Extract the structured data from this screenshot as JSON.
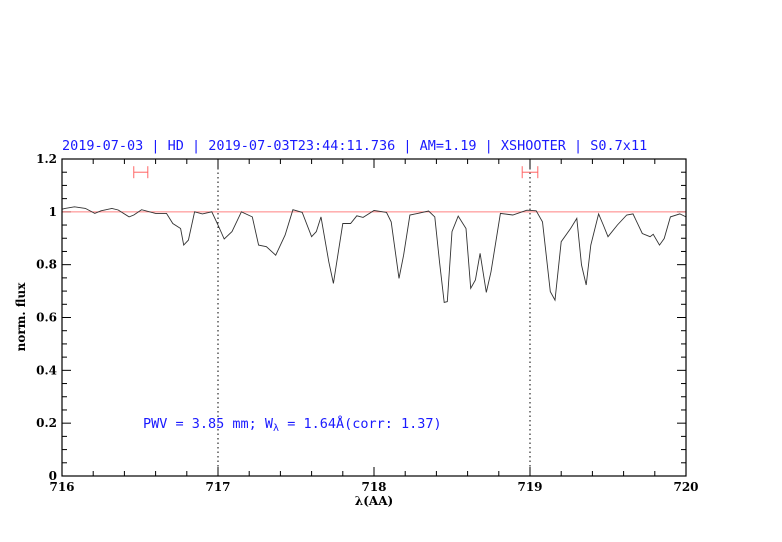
{
  "chart_data": {
    "type": "line",
    "title": "2019-07-03 | HD | 2019-07-03T23:44:11.736 | AM=1.19 | XSHOOTER | S0.7x11",
    "xlabel": "λ(AA)",
    "ylabel": "norm. flux",
    "xlim": [
      716,
      720
    ],
    "ylim": [
      0,
      1.2
    ],
    "x_ticks": [
      "716",
      "717",
      "718",
      "719",
      "720"
    ],
    "y_ticks": [
      "0",
      "0.2",
      "0.4",
      "0.6",
      "0.8",
      "1",
      "1.2"
    ],
    "x_minor_step": 0.2,
    "y_minor_step": 0.05,
    "grid": false,
    "continuum_level": 1.0,
    "continuum_color": "#ff8080",
    "vertical_markers": [
      717,
      719
    ],
    "range_markers": [
      {
        "from": 716.46,
        "to": 716.55,
        "y": 1.15
      },
      {
        "from": 718.95,
        "to": 719.05,
        "y": 1.15
      }
    ],
    "range_marker_color": "#ff6666",
    "annotation": {
      "prefix": "PWV = 3.85 mm; W",
      "subscript": "λ",
      "suffix": " = 1.64Å(corr: 1.37)"
    },
    "annotation_color": "#1a1aff",
    "series": [
      {
        "color": "#333333",
        "points": [
          [
            716.0,
            1.01
          ],
          [
            716.02,
            1.013
          ],
          [
            716.08,
            1.019
          ],
          [
            716.15,
            1.013
          ],
          [
            716.21,
            0.994
          ],
          [
            716.25,
            1.004
          ],
          [
            716.32,
            1.013
          ],
          [
            716.36,
            1.007
          ],
          [
            716.43,
            0.981
          ],
          [
            716.46,
            0.988
          ],
          [
            716.51,
            1.008
          ],
          [
            716.6,
            0.994
          ],
          [
            716.67,
            0.994
          ],
          [
            716.71,
            0.956
          ],
          [
            716.76,
            0.937
          ],
          [
            716.78,
            0.874
          ],
          [
            716.81,
            0.893
          ],
          [
            716.85,
            1.0
          ],
          [
            716.9,
            0.992
          ],
          [
            716.96,
            1.0
          ],
          [
            717.0,
            0.95
          ],
          [
            717.04,
            0.897
          ],
          [
            717.09,
            0.925
          ],
          [
            717.15,
            1.0
          ],
          [
            717.22,
            0.981
          ],
          [
            717.26,
            0.874
          ],
          [
            717.31,
            0.868
          ],
          [
            717.37,
            0.836
          ],
          [
            717.43,
            0.912
          ],
          [
            717.48,
            1.008
          ],
          [
            717.54,
            0.998
          ],
          [
            717.6,
            0.906
          ],
          [
            717.63,
            0.925
          ],
          [
            717.66,
            0.981
          ],
          [
            717.71,
            0.811
          ],
          [
            717.74,
            0.729
          ],
          [
            717.8,
            0.956
          ],
          [
            717.85,
            0.956
          ],
          [
            717.89,
            0.985
          ],
          [
            717.93,
            0.979
          ],
          [
            718.0,
            1.005
          ],
          [
            718.08,
            0.998
          ],
          [
            718.11,
            0.962
          ],
          [
            718.16,
            0.748
          ],
          [
            718.19,
            0.836
          ],
          [
            718.23,
            0.988
          ],
          [
            718.28,
            0.994
          ],
          [
            718.35,
            1.003
          ],
          [
            718.39,
            0.981
          ],
          [
            718.42,
            0.811
          ],
          [
            718.45,
            0.657
          ],
          [
            718.47,
            0.66
          ],
          [
            718.5,
            0.925
          ],
          [
            718.54,
            0.984
          ],
          [
            718.59,
            0.937
          ],
          [
            718.62,
            0.71
          ],
          [
            718.65,
            0.742
          ],
          [
            718.68,
            0.843
          ],
          [
            718.72,
            0.695
          ],
          [
            718.75,
            0.773
          ],
          [
            718.81,
            0.994
          ],
          [
            718.89,
            0.988
          ],
          [
            718.98,
            1.006
          ],
          [
            719.04,
            1.004
          ],
          [
            719.08,
            0.962
          ],
          [
            719.13,
            0.698
          ],
          [
            719.16,
            0.666
          ],
          [
            719.2,
            0.887
          ],
          [
            719.26,
            0.937
          ],
          [
            719.3,
            0.975
          ],
          [
            719.33,
            0.799
          ],
          [
            719.36,
            0.723
          ],
          [
            719.39,
            0.874
          ],
          [
            719.44,
            0.992
          ],
          [
            719.47,
            0.95
          ],
          [
            719.5,
            0.906
          ],
          [
            719.56,
            0.95
          ],
          [
            719.62,
            0.988
          ],
          [
            719.66,
            0.992
          ],
          [
            719.72,
            0.918
          ],
          [
            719.77,
            0.906
          ],
          [
            719.79,
            0.915
          ],
          [
            719.83,
            0.874
          ],
          [
            719.86,
            0.899
          ],
          [
            719.9,
            0.981
          ],
          [
            719.96,
            0.992
          ],
          [
            720.0,
            0.981
          ]
        ]
      }
    ]
  }
}
